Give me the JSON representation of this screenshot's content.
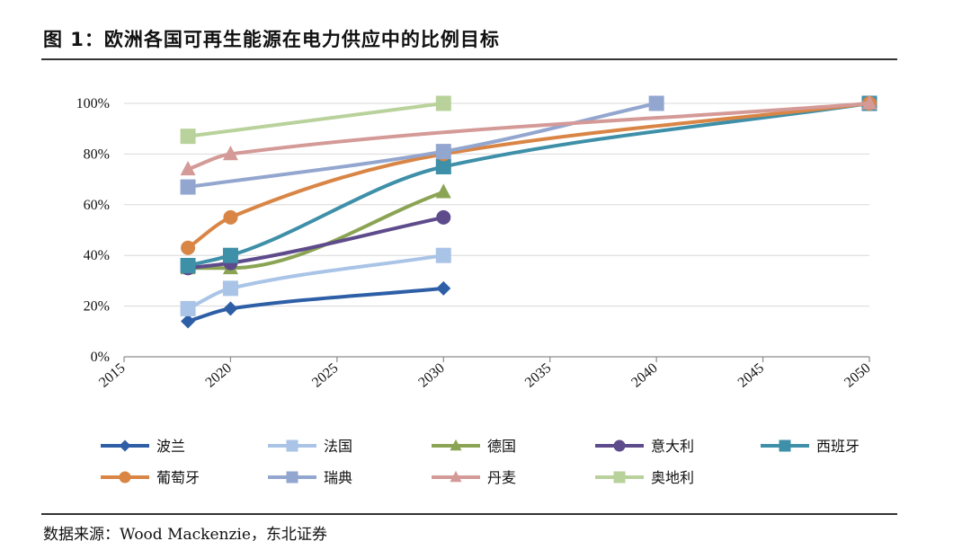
{
  "header": {
    "title": "图 1：欧洲各国可再生能源在电力供应中的比例目标"
  },
  "footer": {
    "source": "数据来源：Wood Mackenzie，东北证券"
  },
  "chart_data": {
    "type": "line",
    "title": "图 1：欧洲各国可再生能源在电力供应中的比例目标",
    "xlabel": "",
    "ylabel": "",
    "xlim": [
      2015,
      2050
    ],
    "ylim": [
      0,
      100
    ],
    "x_ticks": [
      "2015",
      "2020",
      "2025",
      "2030",
      "2035",
      "2040",
      "2045",
      "2050"
    ],
    "y_ticks": [
      "0%",
      "20%",
      "40%",
      "60%",
      "80%",
      "100%"
    ],
    "grid": true,
    "legend_position": "bottom",
    "series": [
      {
        "name": "波兰",
        "color": "#2E5FA6",
        "marker": "diamond",
        "x": [
          2018,
          2020,
          2030
        ],
        "values": [
          14,
          19,
          27
        ]
      },
      {
        "name": "法国",
        "color": "#A9C4E6",
        "marker": "square",
        "x": [
          2018,
          2020,
          2030
        ],
        "values": [
          19,
          27,
          40
        ]
      },
      {
        "name": "德国",
        "color": "#8BA454",
        "marker": "triangle",
        "x": [
          2018,
          2020,
          2030
        ],
        "values": [
          35,
          35,
          65
        ]
      },
      {
        "name": "意大利",
        "color": "#5E4B8B",
        "marker": "circle",
        "x": [
          2018,
          2020,
          2030
        ],
        "values": [
          35,
          37,
          55
        ]
      },
      {
        "name": "西班牙",
        "color": "#3E8FA8",
        "marker": "square",
        "x": [
          2018,
          2020,
          2030,
          2050
        ],
        "values": [
          36,
          40,
          75,
          100
        ]
      },
      {
        "name": "葡萄牙",
        "color": "#D98545",
        "marker": "circle",
        "x": [
          2018,
          2020,
          2030,
          2050
        ],
        "values": [
          43,
          55,
          80,
          100
        ]
      },
      {
        "name": "瑞典",
        "color": "#93A6CF",
        "marker": "square",
        "x": [
          2018,
          2030,
          2040
        ],
        "values": [
          67,
          81,
          100
        ]
      },
      {
        "name": "丹麦",
        "color": "#D49A97",
        "marker": "triangle",
        "x": [
          2018,
          2020,
          2050
        ],
        "values": [
          74,
          80,
          100
        ]
      },
      {
        "name": "奥地利",
        "color": "#B9D29B",
        "marker": "square",
        "x": [
          2018,
          2030
        ],
        "values": [
          87,
          100
        ]
      }
    ]
  }
}
